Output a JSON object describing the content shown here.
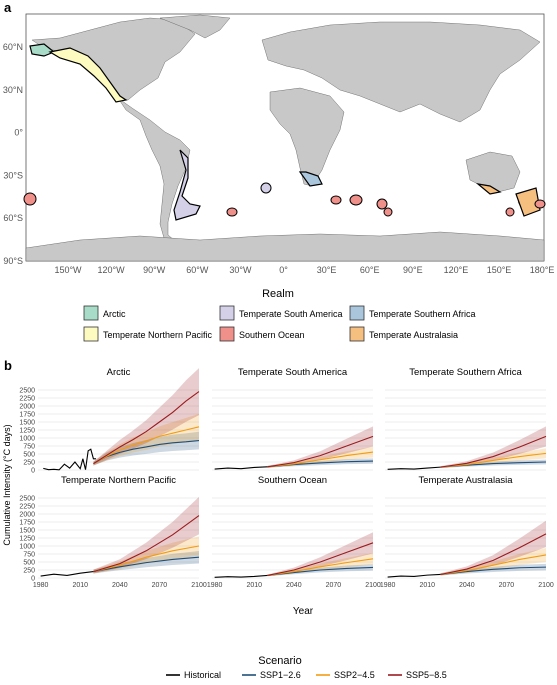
{
  "panel_a": {
    "label": "a",
    "lat_ticks": [
      "60°N",
      "30°N",
      "0°",
      "30°S",
      "60°S",
      "90°S"
    ],
    "lon_ticks": [
      "150°W",
      "120°W",
      "90°W",
      "60°W",
      "30°W",
      "0°",
      "30°E",
      "60°E",
      "90°E",
      "120°E",
      "150°E",
      "180°E"
    ],
    "legend_title": "Realm",
    "legend": [
      {
        "label": "Arctic",
        "color": "#a8dcc9"
      },
      {
        "label": "Temperate South America",
        "color": "#d4d0e8"
      },
      {
        "label": "Temperate Southern Africa",
        "color": "#a9c6dd"
      },
      {
        "label": "Temperate Northern Pacific",
        "color": "#fdfbc0"
      },
      {
        "label": "Southern Ocean",
        "color": "#f0908a"
      },
      {
        "label": "Temperate Australasia",
        "color": "#f5bf80"
      }
    ]
  },
  "panel_b": {
    "label": "b",
    "ylabel": "Cumulative Intensity (°C days)",
    "xlabel": "Year",
    "xticks": [
      "1980",
      "2010",
      "2040",
      "2070",
      "2100"
    ],
    "ytick_labels": [
      "0",
      "250",
      "500",
      "750",
      "1000",
      "1250",
      "1500",
      "1750",
      "2000",
      "2250",
      "2500"
    ],
    "legend_title": "Scenario",
    "legend": [
      {
        "label": "Historical",
        "color": "#000000"
      },
      {
        "label": "SSP1−2.6",
        "color": "#1f4e79"
      },
      {
        "label": "SSP2−4.5",
        "color": "#f39c12"
      },
      {
        "label": "SSP5−8.5",
        "color": "#9b1b20"
      }
    ]
  },
  "chart_data": [
    {
      "type": "line",
      "title": "Arctic",
      "xlim": [
        1978,
        2100
      ],
      "ylim": [
        0,
        2500
      ],
      "grid": true,
      "series": [
        {
          "name": "Historical",
          "x": [
            1982,
            1986,
            1990,
            1994,
            1998,
            2002,
            2006,
            2010,
            2012,
            2014,
            2016,
            2018,
            2020,
            2022
          ],
          "values": [
            50,
            10,
            20,
            5,
            180,
            60,
            250,
            40,
            350,
            10,
            600,
            650,
            350,
            350
          ]
        },
        {
          "name": "SSP1−2.6",
          "x": [
            2020,
            2030,
            2040,
            2050,
            2060,
            2070,
            2080,
            2090,
            2100
          ],
          "values": [
            200,
            420,
            550,
            650,
            720,
            800,
            850,
            880,
            920
          ]
        },
        {
          "name": "SSP2−4.5",
          "x": [
            2020,
            2030,
            2040,
            2050,
            2060,
            2070,
            2080,
            2090,
            2100
          ],
          "values": [
            200,
            430,
            620,
            780,
            900,
            1050,
            1150,
            1250,
            1350
          ]
        },
        {
          "name": "SSP5−8.5",
          "x": [
            2020,
            2030,
            2040,
            2050,
            2060,
            2070,
            2080,
            2090,
            2100
          ],
          "values": [
            200,
            460,
            720,
            950,
            1200,
            1500,
            1800,
            2150,
            2450
          ]
        }
      ]
    },
    {
      "type": "line",
      "title": "Temperate South America",
      "xlim": [
        1978,
        2100
      ],
      "ylim": [
        0,
        2500
      ],
      "grid": true,
      "series": [
        {
          "name": "Historical",
          "x": [
            1980,
            1990,
            2000,
            2010,
            2020
          ],
          "values": [
            30,
            60,
            40,
            80,
            100
          ]
        },
        {
          "name": "SSP1−2.6",
          "x": [
            2020,
            2040,
            2060,
            2080,
            2100
          ],
          "values": [
            100,
            170,
            220,
            260,
            280
          ]
        },
        {
          "name": "SSP2−4.5",
          "x": [
            2020,
            2040,
            2060,
            2080,
            2100
          ],
          "values": [
            100,
            190,
            320,
            450,
            560
          ]
        },
        {
          "name": "SSP5−8.5",
          "x": [
            2020,
            2040,
            2060,
            2080,
            2100
          ],
          "values": [
            100,
            230,
            450,
            750,
            1050
          ]
        }
      ]
    },
    {
      "type": "line",
      "title": "Temperate Southern Africa",
      "xlim": [
        1978,
        2100
      ],
      "ylim": [
        0,
        2500
      ],
      "grid": true,
      "series": [
        {
          "name": "Historical",
          "x": [
            1980,
            1990,
            2000,
            2010,
            2020
          ],
          "values": [
            20,
            40,
            30,
            60,
            90
          ]
        },
        {
          "name": "SSP1−2.6",
          "x": [
            2020,
            2040,
            2060,
            2080,
            2100
          ],
          "values": [
            90,
            150,
            200,
            230,
            250
          ]
        },
        {
          "name": "SSP2−4.5",
          "x": [
            2020,
            2040,
            2060,
            2080,
            2100
          ],
          "values": [
            90,
            170,
            300,
            420,
            520
          ]
        },
        {
          "name": "SSP5−8.5",
          "x": [
            2020,
            2040,
            2060,
            2080,
            2100
          ],
          "values": [
            90,
            210,
            420,
            720,
            1050
          ]
        }
      ]
    },
    {
      "type": "line",
      "title": "Temperate Northern Pacific",
      "xlim": [
        1978,
        2100
      ],
      "ylim": [
        0,
        2500
      ],
      "grid": true,
      "series": [
        {
          "name": "Historical",
          "x": [
            1980,
            1990,
            2000,
            2010,
            2020
          ],
          "values": [
            60,
            120,
            80,
            150,
            200
          ]
        },
        {
          "name": "SSP1−2.6",
          "x": [
            2020,
            2040,
            2060,
            2080,
            2100
          ],
          "values": [
            200,
            350,
            480,
            580,
            650
          ]
        },
        {
          "name": "SSP2−4.5",
          "x": [
            2020,
            2040,
            2060,
            2080,
            2100
          ],
          "values": [
            200,
            400,
            650,
            850,
            1000
          ]
        },
        {
          "name": "SSP5−8.5",
          "x": [
            2020,
            2040,
            2060,
            2080,
            2100
          ],
          "values": [
            200,
            450,
            850,
            1350,
            1950
          ]
        }
      ]
    },
    {
      "type": "line",
      "title": "Southern Ocean",
      "xlim": [
        1978,
        2100
      ],
      "ylim": [
        0,
        2500
      ],
      "grid": true,
      "series": [
        {
          "name": "Historical",
          "x": [
            1980,
            1990,
            2000,
            2010,
            2020
          ],
          "values": [
            20,
            40,
            30,
            50,
            80
          ]
        },
        {
          "name": "SSP1−2.6",
          "x": [
            2020,
            2040,
            2060,
            2080,
            2100
          ],
          "values": [
            80,
            170,
            250,
            300,
            330
          ]
        },
        {
          "name": "SSP2−4.5",
          "x": [
            2020,
            2040,
            2060,
            2080,
            2100
          ],
          "values": [
            80,
            200,
            350,
            480,
            600
          ]
        },
        {
          "name": "SSP5−8.5",
          "x": [
            2020,
            2040,
            2060,
            2080,
            2100
          ],
          "values": [
            80,
            250,
            500,
            800,
            1100
          ]
        }
      ]
    },
    {
      "type": "line",
      "title": "Temperate Australasia",
      "xlim": [
        1978,
        2100
      ],
      "ylim": [
        0,
        2500
      ],
      "grid": true,
      "series": [
        {
          "name": "Historical",
          "x": [
            1980,
            1990,
            2000,
            2010,
            2020
          ],
          "values": [
            30,
            60,
            50,
            90,
            110
          ]
        },
        {
          "name": "SSP1−2.6",
          "x": [
            2020,
            2040,
            2060,
            2080,
            2100
          ],
          "values": [
            110,
            200,
            270,
            320,
            340
          ]
        },
        {
          "name": "SSP2−4.5",
          "x": [
            2020,
            2040,
            2060,
            2080,
            2100
          ],
          "values": [
            110,
            230,
            400,
            580,
            720
          ]
        },
        {
          "name": "SSP5−8.5",
          "x": [
            2020,
            2040,
            2060,
            2080,
            2100
          ],
          "values": [
            110,
            280,
            550,
            950,
            1380
          ]
        }
      ]
    }
  ]
}
